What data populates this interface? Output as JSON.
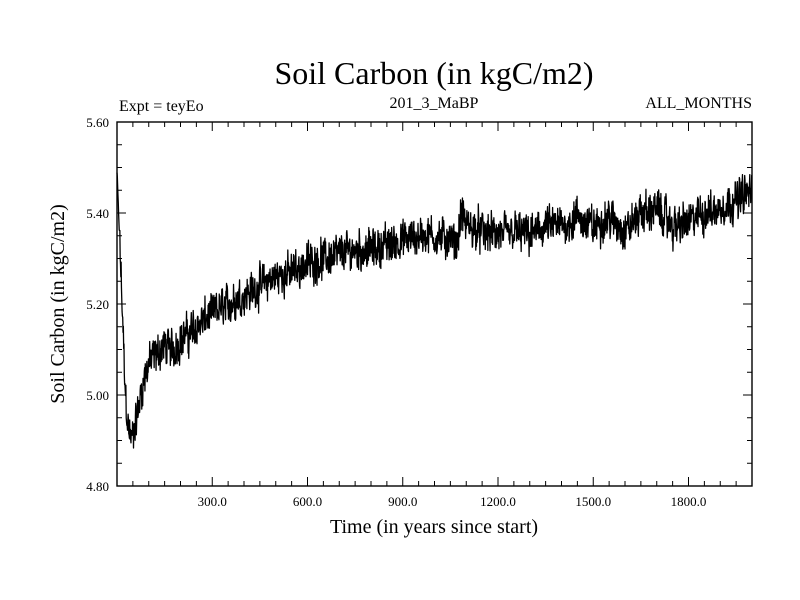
{
  "chart_data": {
    "type": "line",
    "title": "Soil Carbon (in kgC/m2)",
    "subtitle_left": "Expt = teyEo",
    "subtitle_center": "201_3_MaBP",
    "subtitle_right": "ALL_MONTHS",
    "xlabel": "Time (in years since start)",
    "ylabel": "Soil Carbon (in kgC/m2)",
    "xlim": [
      0,
      2000
    ],
    "ylim": [
      4.8,
      5.6
    ],
    "xticks": [
      300,
      600,
      900,
      1200,
      1500,
      1800
    ],
    "xtick_labels": [
      "300.0",
      "600.0",
      "900.0",
      "1200.0",
      "1500.0",
      "1800.0"
    ],
    "yticks": [
      4.8,
      5.0,
      5.2,
      5.4,
      5.6
    ],
    "ytick_labels": [
      "4.80",
      "5.00",
      "5.20",
      "5.40",
      "5.60"
    ],
    "series": [
      {
        "name": "soil_carbon",
        "color": "#000000",
        "x": [
          0,
          5,
          15,
          25,
          35,
          45,
          55,
          65,
          80,
          100,
          125,
          150,
          175,
          200,
          250,
          300,
          350,
          400,
          450,
          500,
          550,
          600,
          650,
          700,
          750,
          800,
          850,
          900,
          950,
          1000,
          1050,
          1070,
          1085,
          1100,
          1150,
          1200,
          1250,
          1300,
          1350,
          1400,
          1450,
          1500,
          1550,
          1600,
          1650,
          1700,
          1750,
          1800,
          1850,
          1900,
          1950,
          2000
        ],
        "y": [
          5.49,
          5.4,
          5.22,
          5.02,
          4.93,
          4.9,
          4.93,
          4.96,
          5.02,
          5.07,
          5.09,
          5.11,
          5.1,
          5.12,
          5.15,
          5.18,
          5.2,
          5.22,
          5.24,
          5.26,
          5.27,
          5.29,
          5.3,
          5.31,
          5.32,
          5.32,
          5.33,
          5.34,
          5.35,
          5.35,
          5.34,
          5.33,
          5.4,
          5.37,
          5.36,
          5.35,
          5.36,
          5.35,
          5.37,
          5.37,
          5.39,
          5.37,
          5.39,
          5.36,
          5.4,
          5.41,
          5.37,
          5.38,
          5.4,
          5.41,
          5.43,
          5.45
        ],
        "noise_amplitude": 0.055
      }
    ]
  }
}
